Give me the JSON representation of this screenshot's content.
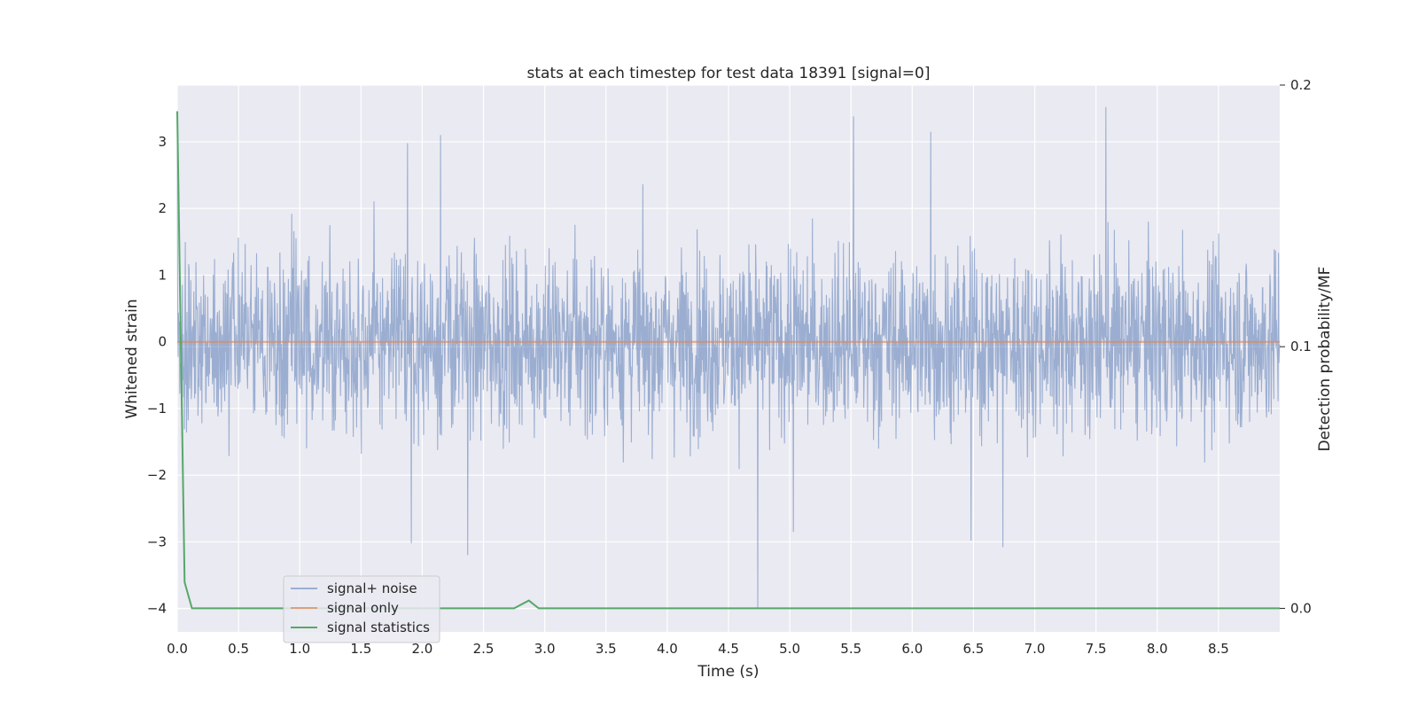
{
  "chart_data": {
    "type": "line",
    "title": "stats at each timestep for test data 18391 [signal=0]",
    "xlabel": "Time (s)",
    "ylabel": "Whitened strain",
    "y2label": "Detection probability/MF",
    "xlim": [
      0.0,
      9.0
    ],
    "ylim": [
      -4.35,
      3.85
    ],
    "y2lim": [
      -0.009,
      0.2
    ],
    "xticks": [
      "0.0",
      "0.5",
      "1.0",
      "1.5",
      "2.0",
      "2.5",
      "3.0",
      "3.5",
      "4.0",
      "4.5",
      "5.0",
      "5.5",
      "6.0",
      "6.5",
      "7.0",
      "7.5",
      "8.0",
      "8.5"
    ],
    "yticks": [
      "3",
      "2",
      "1",
      "0",
      "−1",
      "−2",
      "−3",
      "−4"
    ],
    "y2ticks": [
      "0.2",
      "0.1",
      "0.0"
    ],
    "grid": true,
    "legend_position": "lower-left",
    "series": [
      {
        "name": "signal+ noise",
        "color": "#4c72b0",
        "description": "dense whitened noise, mostly within about -2.5 to 2.5",
        "peaks": [
          {
            "x": 0.0,
            "y": 3.45
          },
          {
            "x": 1.88,
            "y": 2.98
          },
          {
            "x": 2.15,
            "y": 3.1
          },
          {
            "x": 5.52,
            "y": 3.38
          },
          {
            "x": 6.15,
            "y": 3.15
          },
          {
            "x": 7.58,
            "y": 3.52
          },
          {
            "x": 4.74,
            "y": -4.0
          },
          {
            "x": 2.37,
            "y": -3.2
          },
          {
            "x": 1.91,
            "y": -3.02
          },
          {
            "x": 6.74,
            "y": -3.08
          },
          {
            "x": 6.48,
            "y": -2.98
          },
          {
            "x": 5.03,
            "y": -2.85
          }
        ]
      },
      {
        "name": "signal only",
        "color": "#dd8452",
        "x": [
          0.0,
          9.0
        ],
        "y": [
          0.0,
          0.0
        ]
      },
      {
        "name": "signal statistics",
        "color": "#55a868",
        "axis": "right",
        "x": [
          0.0,
          0.03,
          0.06,
          0.12,
          2.75,
          2.87,
          2.95,
          9.0
        ],
        "y": [
          0.19,
          0.1,
          0.01,
          0.0,
          0.0,
          0.003,
          0.0,
          0.0
        ]
      }
    ]
  }
}
